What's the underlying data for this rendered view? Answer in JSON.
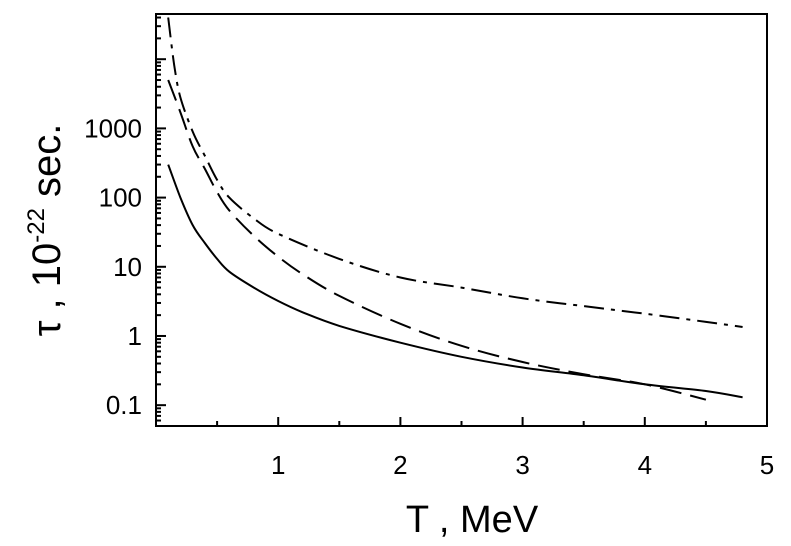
{
  "chart_data": {
    "type": "line",
    "xlabel": "T , MeV",
    "ylabel": {
      "symbol": "τ",
      "separator": " , ",
      "base": "10",
      "exponent": "-22",
      "unit": " sec."
    },
    "x_ticks": [
      "1",
      "2",
      "3",
      "4",
      "5"
    ],
    "y_ticks": [
      "0.1",
      "1",
      "10",
      "100",
      "1000"
    ],
    "xlim": [
      0,
      5
    ],
    "ylim": [
      0.05,
      45000
    ],
    "yscale": "log",
    "grid": false,
    "legend": "none",
    "series": [
      {
        "style": "solid",
        "x": [
          0.1,
          0.2,
          0.3,
          0.4,
          0.5,
          0.6,
          0.8,
          1.0,
          1.2,
          1.5,
          2.0,
          2.5,
          3.0,
          3.5,
          4.0,
          4.5,
          4.8
        ],
        "y": [
          300,
          100,
          40,
          22,
          13,
          8.5,
          5,
          3.2,
          2.2,
          1.4,
          0.8,
          0.5,
          0.35,
          0.27,
          0.2,
          0.16,
          0.13
        ]
      },
      {
        "style": "dashed",
        "x": [
          0.1,
          0.2,
          0.3,
          0.4,
          0.5,
          0.6,
          0.8,
          1.0,
          1.2,
          1.5,
          2.0,
          2.5,
          3.0,
          3.5,
          4.0,
          4.5
        ],
        "y": [
          5000,
          1700,
          550,
          260,
          120,
          65,
          28,
          14,
          7.8,
          3.8,
          1.5,
          0.72,
          0.42,
          0.28,
          0.2,
          0.12
        ]
      },
      {
        "style": "dash-dot",
        "x": [
          0.1,
          0.15,
          0.2,
          0.3,
          0.4,
          0.5,
          0.6,
          0.8,
          1.0,
          1.5,
          2.0,
          2.5,
          3.0,
          3.5,
          4.0,
          4.5,
          4.8
        ],
        "y": [
          40000,
          8000,
          2800,
          900,
          400,
          180,
          100,
          50,
          30,
          13,
          7,
          5,
          3.5,
          2.7,
          2.1,
          1.6,
          1.35
        ]
      }
    ]
  }
}
